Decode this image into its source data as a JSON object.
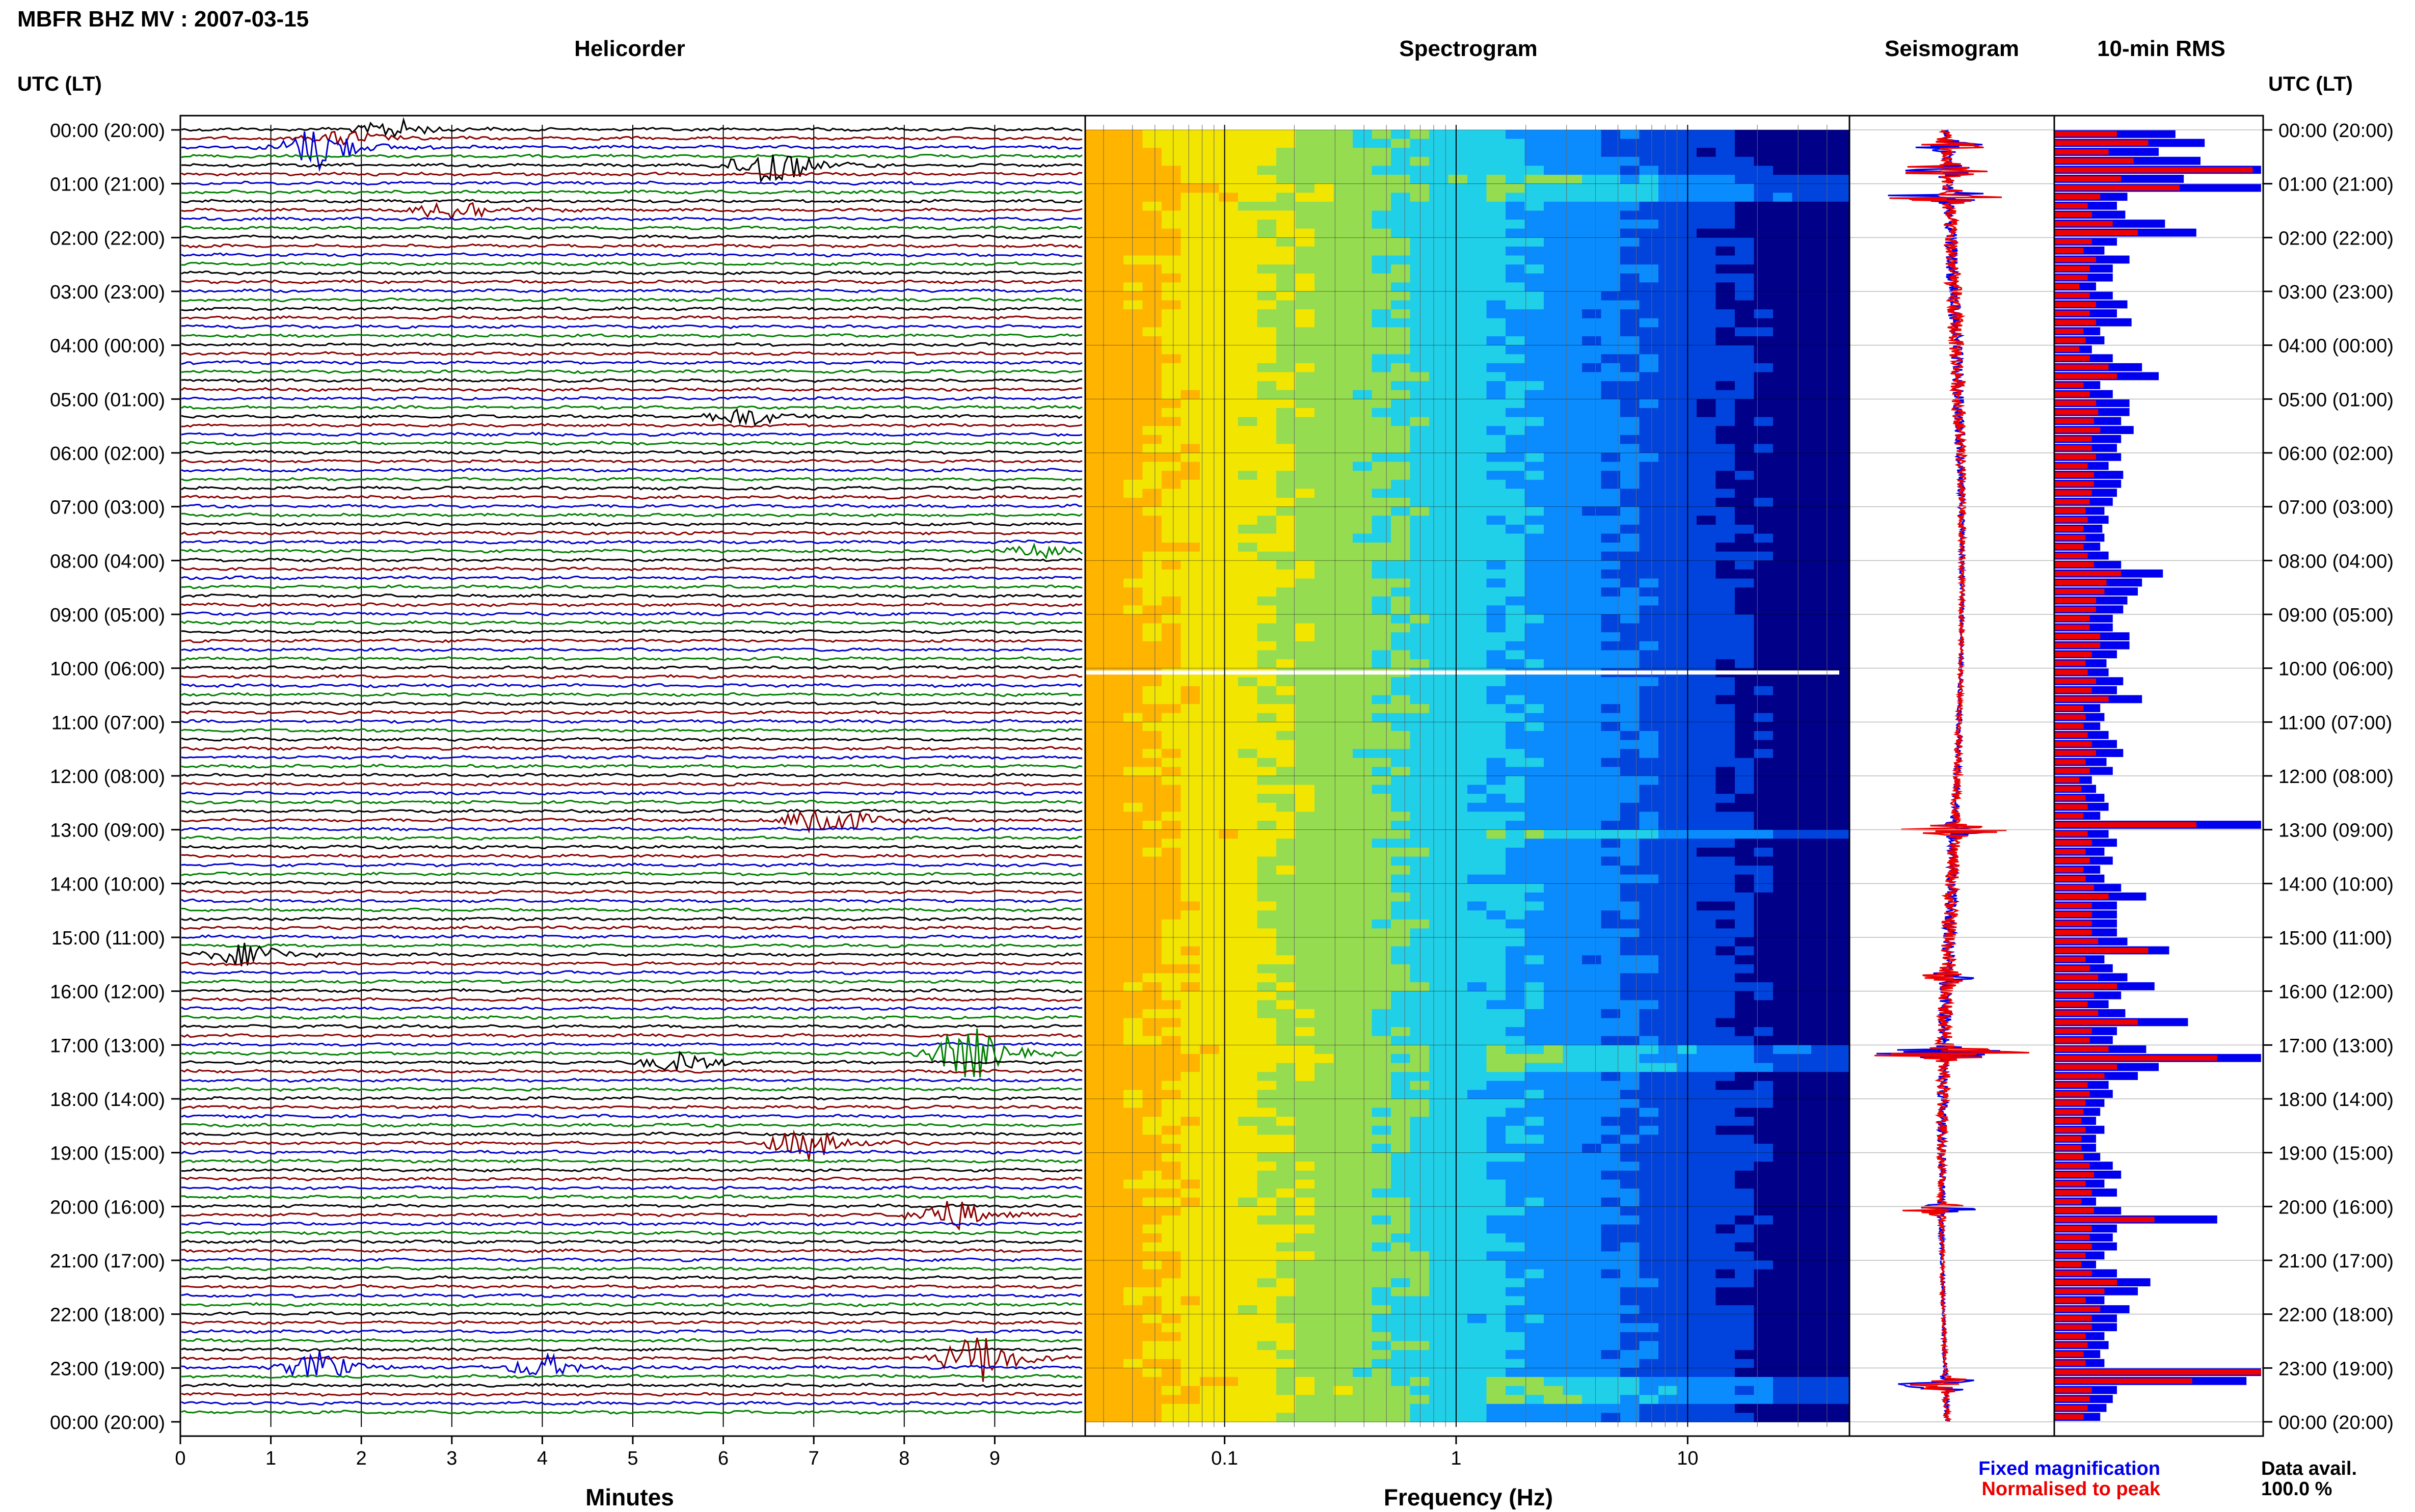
{
  "page_title": "MBFR BHZ MV : 2007-03-15",
  "utc_header": "UTC (LT)",
  "hour_labels": [
    "00:00 (20:00)",
    "01:00 (21:00)",
    "02:00 (22:00)",
    "03:00 (23:00)",
    "04:00 (00:00)",
    "05:00 (01:00)",
    "06:00 (02:00)",
    "07:00 (03:00)",
    "08:00 (04:00)",
    "09:00 (05:00)",
    "10:00 (06:00)",
    "11:00 (07:00)",
    "12:00 (08:00)",
    "13:00 (09:00)",
    "14:00 (10:00)",
    "15:00 (11:00)",
    "16:00 (12:00)",
    "17:00 (13:00)",
    "18:00 (14:00)",
    "19:00 (15:00)",
    "20:00 (16:00)",
    "21:00 (17:00)",
    "22:00 (18:00)",
    "23:00 (19:00)",
    "00:00 (20:00)"
  ],
  "legend": {
    "fixed_label": "Fixed magnification",
    "fixed_color": "#0000ee",
    "normalised_label": "Normalised to peak",
    "normalised_color": "#ee0000",
    "avail_label": "Data avail.",
    "avail_value": "100.0 %"
  },
  "chart_data": [
    {
      "type": "line",
      "title": "Helicorder",
      "xlabel": "Minutes",
      "xticks": [
        "0",
        "1",
        "2",
        "3",
        "4",
        "5",
        "6",
        "7",
        "8",
        "9"
      ],
      "xlim": [
        0,
        10
      ],
      "rows_per_hour": 6,
      "row_minutes": 10,
      "trace_colors": [
        "#000000",
        "#8b0000",
        "#0000cd",
        "#008000"
      ],
      "events": [
        {
          "row": 0,
          "minute": 2.3,
          "amp": 0.6
        },
        {
          "row": 1,
          "minute": 1.8,
          "amp": 0.5
        },
        {
          "row": 2,
          "minute": 1.5,
          "amp": 1.4
        },
        {
          "row": 4,
          "minute": 6.5,
          "amp": 1.5
        },
        {
          "row": 9,
          "minute": 3.0,
          "amp": 0.8
        },
        {
          "row": 32,
          "minute": 6.2,
          "amp": 0.6
        },
        {
          "row": 47,
          "minute": 9.6,
          "amp": 0.5
        },
        {
          "row": 77,
          "minute": 7.1,
          "amp": 1.3
        },
        {
          "row": 92,
          "minute": 0.7,
          "amp": 0.8
        },
        {
          "row": 103,
          "minute": 8.7,
          "amp": 1.8
        },
        {
          "row": 104,
          "minute": 5.5,
          "amp": 0.6
        },
        {
          "row": 113,
          "minute": 6.9,
          "amp": 1.0
        },
        {
          "row": 121,
          "minute": 8.5,
          "amp": 1.0
        },
        {
          "row": 137,
          "minute": 8.8,
          "amp": 1.6
        },
        {
          "row": 138,
          "minute": 1.5,
          "amp": 0.9
        },
        {
          "row": 138,
          "minute": 4.0,
          "amp": 0.7
        }
      ]
    },
    {
      "type": "heatmap",
      "title": "Spectrogram",
      "xlabel": "Frequency (Hz)",
      "x_scale": "log",
      "xlim": [
        0.025,
        50
      ],
      "xticks": [
        0.1,
        1,
        10
      ],
      "xtick_labels": [
        "0.1",
        "1",
        "10"
      ],
      "gap_hour": 10.08,
      "color_stops": [
        "#ffb400",
        "#f2e600",
        "#96dc50",
        "#20d0e8",
        "#0a8cff",
        "#0044dd",
        "#000088"
      ]
    },
    {
      "type": "line",
      "title": "Seismogram",
      "bursts": [
        {
          "hour": 0.3,
          "amp": 0.5
        },
        {
          "hour": 0.75,
          "amp": 0.7
        },
        {
          "hour": 1.25,
          "amp": 0.9
        },
        {
          "hour": 13.0,
          "amp": 0.55
        },
        {
          "hour": 15.75,
          "amp": 0.3
        },
        {
          "hour": 17.15,
          "amp": 0.95
        },
        {
          "hour": 20.05,
          "amp": 0.45
        },
        {
          "hour": 23.3,
          "amp": 0.9
        }
      ]
    },
    {
      "type": "bar",
      "title": "10-min RMS",
      "series": [
        {
          "name": "Fixed magnification",
          "values": [
            0.58,
            0.72,
            0.5,
            0.7,
            0.99,
            0.62,
            0.99,
            0.35,
            0.3,
            0.34,
            0.53,
            0.68,
            0.3,
            0.24,
            0.36,
            0.28,
            0.28,
            0.2,
            0.28,
            0.35,
            0.3,
            0.37,
            0.22,
            0.24,
            0.18,
            0.28,
            0.42,
            0.5,
            0.22,
            0.28,
            0.36,
            0.36,
            0.32,
            0.38,
            0.32,
            0.3,
            0.32,
            0.26,
            0.33,
            0.32,
            0.3,
            0.28,
            0.24,
            0.26,
            0.23,
            0.24,
            0.22,
            0.26,
            0.32,
            0.52,
            0.42,
            0.4,
            0.35,
            0.33,
            0.28,
            0.28,
            0.36,
            0.36,
            0.3,
            0.25,
            0.26,
            0.33,
            0.3,
            0.42,
            0.22,
            0.24,
            0.22,
            0.26,
            0.3,
            0.33,
            0.25,
            0.28,
            0.18,
            0.2,
            0.24,
            0.26,
            0.22,
            0.99,
            0.26,
            0.3,
            0.24,
            0.28,
            0.22,
            0.24,
            0.32,
            0.44,
            0.3,
            0.3,
            0.3,
            0.3,
            0.35,
            0.55,
            0.24,
            0.28,
            0.35,
            0.48,
            0.32,
            0.26,
            0.34,
            0.64,
            0.3,
            0.28,
            0.44,
            0.99,
            0.5,
            0.4,
            0.26,
            0.28,
            0.24,
            0.22,
            0.2,
            0.24,
            0.2,
            0.2,
            0.22,
            0.28,
            0.32,
            0.24,
            0.3,
            0.2,
            0.32,
            0.78,
            0.3,
            0.28,
            0.3,
            0.24,
            0.2,
            0.3,
            0.46,
            0.4,
            0.24,
            0.36,
            0.3,
            0.3,
            0.24,
            0.26,
            0.22,
            0.24,
            0.99,
            0.92,
            0.3,
            0.28,
            0.25,
            0.22
          ]
        },
        {
          "name": "Normalised to peak",
          "values": [
            0.3,
            0.45,
            0.26,
            0.38,
            0.95,
            0.32,
            0.6,
            0.22,
            0.16,
            0.18,
            0.28,
            0.4,
            0.18,
            0.14,
            0.2,
            0.17,
            0.16,
            0.12,
            0.17,
            0.2,
            0.17,
            0.2,
            0.14,
            0.15,
            0.12,
            0.17,
            0.26,
            0.3,
            0.14,
            0.17,
            0.2,
            0.21,
            0.19,
            0.22,
            0.18,
            0.18,
            0.2,
            0.16,
            0.19,
            0.19,
            0.18,
            0.17,
            0.15,
            0.16,
            0.14,
            0.15,
            0.14,
            0.16,
            0.19,
            0.32,
            0.25,
            0.24,
            0.2,
            0.2,
            0.17,
            0.17,
            0.22,
            0.22,
            0.18,
            0.15,
            0.16,
            0.2,
            0.18,
            0.26,
            0.14,
            0.15,
            0.14,
            0.16,
            0.18,
            0.2,
            0.15,
            0.17,
            0.12,
            0.13,
            0.15,
            0.16,
            0.14,
            0.68,
            0.16,
            0.18,
            0.15,
            0.17,
            0.14,
            0.15,
            0.19,
            0.26,
            0.18,
            0.18,
            0.18,
            0.18,
            0.21,
            0.45,
            0.15,
            0.17,
            0.21,
            0.3,
            0.19,
            0.16,
            0.21,
            0.4,
            0.18,
            0.17,
            0.26,
            0.78,
            0.3,
            0.24,
            0.16,
            0.17,
            0.15,
            0.14,
            0.13,
            0.15,
            0.13,
            0.13,
            0.14,
            0.17,
            0.19,
            0.15,
            0.18,
            0.13,
            0.19,
            0.48,
            0.18,
            0.17,
            0.18,
            0.15,
            0.13,
            0.18,
            0.3,
            0.24,
            0.15,
            0.22,
            0.18,
            0.18,
            0.15,
            0.16,
            0.14,
            0.15,
            0.99,
            0.66,
            0.18,
            0.17,
            0.16,
            0.14
          ]
        }
      ]
    }
  ]
}
